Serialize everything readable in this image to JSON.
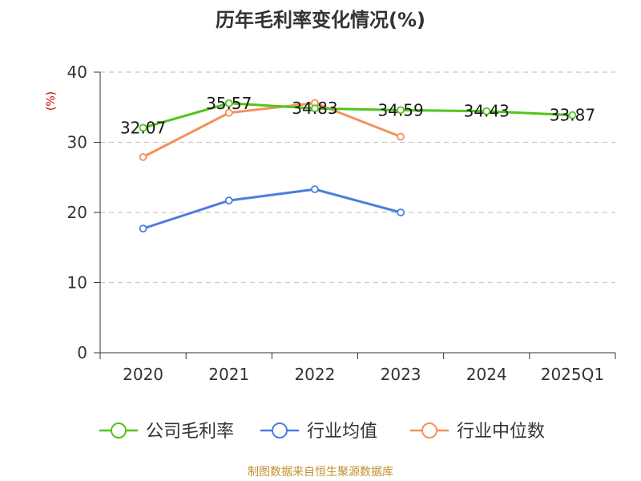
{
  "title": "历年毛利率变化情况(%)",
  "source": "制图数据来自恒生聚源数据库",
  "chart_data": {
    "type": "line",
    "title": "历年毛利率变化情况(%)",
    "ylabel": "(%)",
    "xlabel": "",
    "ylim": [
      0,
      40
    ],
    "yticks": [
      0,
      10,
      20,
      30,
      40
    ],
    "grid": true,
    "legend_position": "bottom",
    "categories": [
      "2020",
      "2021",
      "2022",
      "2023",
      "2024",
      "2025Q1"
    ],
    "series": [
      {
        "name": "公司毛利率",
        "color": "#52c41a",
        "values": [
          32.07,
          35.57,
          34.83,
          34.59,
          34.43,
          33.87
        ],
        "labels": [
          "32.07",
          "35.57",
          "34.83",
          "34.59",
          "34.43",
          "33.87"
        ]
      },
      {
        "name": "行业均值",
        "color": "#4a7fdb",
        "values": [
          17.7,
          21.7,
          23.3,
          20.0,
          null,
          null
        ]
      },
      {
        "name": "行业中位数",
        "color": "#f4915a",
        "values": [
          27.9,
          34.2,
          35.6,
          30.8,
          null,
          null
        ]
      }
    ]
  }
}
